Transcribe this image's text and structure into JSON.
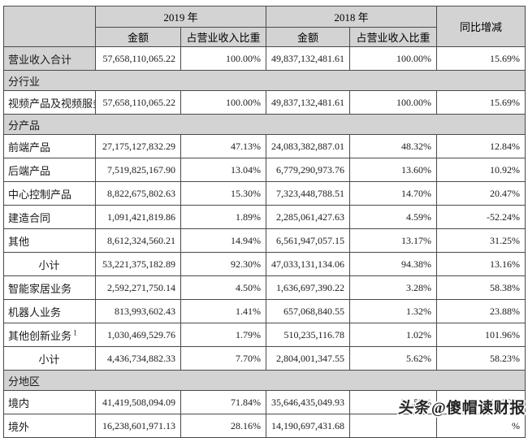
{
  "table": {
    "header": {
      "corner": "",
      "year_2019": "2019 年",
      "year_2018": "2018 年",
      "amount": "金额",
      "pct": "占营业收入比重",
      "yoy": "同比增减"
    },
    "rows": [
      {
        "type": "data",
        "label": "营业收入合计",
        "gray": true,
        "a2019": "57,658,110,065.22",
        "p2019": "100.00%",
        "a2018": "49,837,132,481.61",
        "p2018": "100.00%",
        "yoy": "15.69%"
      },
      {
        "type": "section",
        "id": "industry",
        "label": "分行业"
      },
      {
        "type": "data",
        "label": "视频产品及视频服务",
        "a2019": "57,658,110,065.22",
        "p2019": "100.00%",
        "a2018": "49,837,132,481.61",
        "p2018": "100.00%",
        "yoy": "15.69%"
      },
      {
        "type": "section",
        "id": "product",
        "label": "分产品"
      },
      {
        "type": "data",
        "label": "前端产品",
        "a2019": "27,175,127,832.29",
        "p2019": "47.13%",
        "a2018": "24,083,382,887.01",
        "p2018": "48.32%",
        "yoy": "12.84%"
      },
      {
        "type": "data",
        "label": "后端产品",
        "a2019": "7,519,825,167.90",
        "p2019": "13.04%",
        "a2018": "6,779,290,973.76",
        "p2018": "13.60%",
        "yoy": "10.92%"
      },
      {
        "type": "data",
        "label": "中心控制产品",
        "a2019": "8,822,675,802.63",
        "p2019": "15.30%",
        "a2018": "7,323,448,788.51",
        "p2018": "14.70%",
        "yoy": "20.47%"
      },
      {
        "type": "data",
        "label": "建造合同",
        "a2019": "1,091,421,819.86",
        "p2019": "1.89%",
        "a2018": "2,285,061,427.63",
        "p2018": "4.59%",
        "yoy": "-52.24%"
      },
      {
        "type": "data",
        "label": "其他",
        "a2019": "8,612,324,560.21",
        "p2019": "14.94%",
        "a2018": "6,561,947,057.15",
        "p2018": "13.17%",
        "yoy": "31.25%"
      },
      {
        "type": "data",
        "label": "小计",
        "center": true,
        "a2019": "53,221,375,182.89",
        "p2019": "92.30%",
        "a2018": "47,033,131,134.06",
        "p2018": "94.38%",
        "yoy": "13.16%"
      },
      {
        "type": "data",
        "label": "智能家居业务",
        "a2019": "2,592,271,750.14",
        "p2019": "4.50%",
        "a2018": "1,636,697,390.22",
        "p2018": "3.28%",
        "yoy": "58.38%"
      },
      {
        "type": "data",
        "label": "机器人业务",
        "a2019": "813,993,602.43",
        "p2019": "1.41%",
        "a2018": "657,068,840.55",
        "p2018": "1.32%",
        "yoy": "23.88%"
      },
      {
        "type": "data",
        "label": "其他创新业务",
        "sup": "1",
        "a2019": "1,030,469,529.76",
        "p2019": "1.79%",
        "a2018": "510,235,116.78",
        "p2018": "1.02%",
        "yoy": "101.96%"
      },
      {
        "type": "data",
        "label": "小计",
        "center": true,
        "a2019": "4,436,734,882.33",
        "p2019": "7.70%",
        "a2018": "2,804,001,347.55",
        "p2018": "5.62%",
        "yoy": "58.23%"
      },
      {
        "type": "section",
        "id": "region",
        "label": "分地区"
      },
      {
        "type": "data",
        "label": "境内",
        "a2019": "41,419,508,094.09",
        "p2019": "71.84%",
        "a2018": "35,646,435,049.93",
        "p2018": "71.53%",
        "yoy": "16.20%"
      },
      {
        "type": "data",
        "label": "境外",
        "a2019": "16,238,601,971.13",
        "p2019": "28.16%",
        "a2018": "14,190,697,431.68",
        "p2018": "",
        "yoy": "%"
      }
    ],
    "colors": {
      "gray_fill": "#d3d3d3",
      "border": "#4a4a4a"
    }
  },
  "watermark": {
    "brand": "头条",
    "handle": "@傻帽读财报"
  }
}
